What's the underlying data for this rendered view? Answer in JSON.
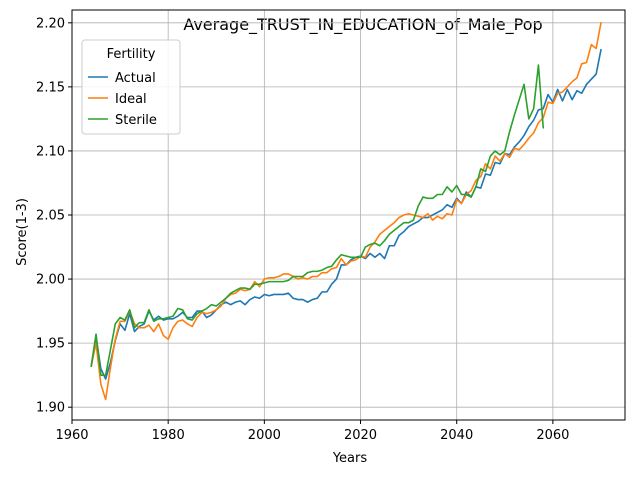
{
  "chart_data": {
    "type": "line",
    "title": "Average_TRUST_IN_EDUCATION_of_Male_Pop",
    "xlabel": "Years",
    "ylabel": "Score(1-3)",
    "xlim": [
      1960,
      2075
    ],
    "ylim": [
      1.89,
      2.21
    ],
    "xticks": [
      1960,
      1980,
      2000,
      2020,
      2040,
      2060
    ],
    "yticks": [
      1.9,
      1.95,
      2.0,
      2.05,
      2.1,
      2.15,
      2.2
    ],
    "xtick_labels": [
      "1960",
      "1980",
      "2000",
      "2020",
      "2040",
      "2060"
    ],
    "ytick_labels": [
      "1.90",
      "1.95",
      "2.00",
      "2.05",
      "2.10",
      "2.15",
      "2.20"
    ],
    "grid": true,
    "legend": {
      "title": "Fertility",
      "position": "top-left"
    },
    "series": [
      {
        "name": "Actual",
        "color": "#1f77b4",
        "x": [
          1964,
          1965,
          1966,
          1967,
          1968,
          1969,
          1970,
          1971,
          1972,
          1973,
          1974,
          1975,
          1976,
          1977,
          1978,
          1979,
          1980,
          1981,
          1982,
          1983,
          1984,
          1985,
          1986,
          1987,
          1988,
          1989,
          1990,
          1991,
          1992,
          1993,
          1994,
          1995,
          1996,
          1997,
          1998,
          1999,
          2000,
          2001,
          2002,
          2003,
          2004,
          2005,
          2006,
          2007,
          2008,
          2009,
          2010,
          2011,
          2012,
          2013,
          2014,
          2015,
          2016,
          2017,
          2018,
          2019,
          2020,
          2021,
          2022,
          2023,
          2024,
          2025,
          2026,
          2027,
          2028,
          2029,
          2030,
          2031,
          2032,
          2033,
          2034,
          2035,
          2036,
          2037,
          2038,
          2039,
          2040,
          2041,
          2042,
          2043,
          2044,
          2045,
          2046,
          2047,
          2048,
          2049,
          2050,
          2051,
          2052,
          2053,
          2054,
          2055,
          2056,
          2057,
          2058,
          2059,
          2060,
          2061,
          2062,
          2063,
          2064,
          2065,
          2066,
          2067,
          2068,
          2069,
          2070
        ],
        "values": [
          1.932,
          1.955,
          1.93,
          1.922,
          1.935,
          1.952,
          1.965,
          1.96,
          1.973,
          1.959,
          1.963,
          1.965,
          1.975,
          1.968,
          1.971,
          1.968,
          1.969,
          1.969,
          1.971,
          1.974,
          1.97,
          1.97,
          1.975,
          1.975,
          1.97,
          1.972,
          1.976,
          1.98,
          1.982,
          1.98,
          1.982,
          1.983,
          1.98,
          1.984,
          1.986,
          1.985,
          1.988,
          1.987,
          1.988,
          1.988,
          1.988,
          1.989,
          1.985,
          1.984,
          1.984,
          1.982,
          1.984,
          1.985,
          1.99,
          1.99,
          1.996,
          2.0,
          2.011,
          2.011,
          2.015,
          2.017,
          2.018,
          2.016,
          2.02,
          2.017,
          2.02,
          2.016,
          2.026,
          2.026,
          2.034,
          2.037,
          2.041,
          2.043,
          2.045,
          2.048,
          2.048,
          2.05,
          2.052,
          2.054,
          2.058,
          2.056,
          2.063,
          2.059,
          2.068,
          2.064,
          2.072,
          2.071,
          2.082,
          2.081,
          2.091,
          2.09,
          2.098,
          2.097,
          2.103,
          2.107,
          2.112,
          2.119,
          2.124,
          2.132,
          2.133,
          2.144,
          2.138,
          2.148,
          2.139,
          2.148,
          2.14,
          2.147,
          2.145,
          2.152,
          2.156,
          2.16,
          2.179
        ]
      },
      {
        "name": "Ideal",
        "color": "#ff7f0e",
        "x": [
          1964,
          1965,
          1966,
          1967,
          1968,
          1969,
          1970,
          1971,
          1972,
          1973,
          1974,
          1975,
          1976,
          1977,
          1978,
          1979,
          1980,
          1981,
          1982,
          1983,
          1984,
          1985,
          1986,
          1987,
          1988,
          1989,
          1990,
          1991,
          1992,
          1993,
          1994,
          1995,
          1996,
          1997,
          1998,
          1999,
          2000,
          2001,
          2002,
          2003,
          2004,
          2005,
          2006,
          2007,
          2008,
          2009,
          2010,
          2011,
          2012,
          2013,
          2014,
          2015,
          2016,
          2017,
          2018,
          2019,
          2020,
          2021,
          2022,
          2023,
          2024,
          2025,
          2026,
          2027,
          2028,
          2029,
          2030,
          2031,
          2032,
          2033,
          2034,
          2035,
          2036,
          2037,
          2038,
          2039,
          2040,
          2041,
          2042,
          2043,
          2044,
          2045,
          2046,
          2047,
          2048,
          2049,
          2050,
          2051,
          2052,
          2053,
          2054,
          2055,
          2056,
          2057,
          2058,
          2059,
          2060,
          2061,
          2062,
          2063,
          2064,
          2065,
          2066,
          2067,
          2068,
          2069,
          2070
        ],
        "values": [
          1.932,
          1.95,
          1.918,
          1.906,
          1.931,
          1.953,
          1.967,
          1.967,
          1.975,
          1.965,
          1.962,
          1.962,
          1.964,
          1.959,
          1.965,
          1.956,
          1.953,
          1.962,
          1.967,
          1.968,
          1.965,
          1.963,
          1.97,
          1.974,
          1.973,
          1.974,
          1.976,
          1.979,
          1.985,
          1.988,
          1.989,
          1.992,
          1.991,
          1.992,
          1.998,
          1.994,
          2.0,
          2.001,
          2.001,
          2.002,
          2.004,
          2.004,
          2.002,
          2.0,
          2.001,
          2.0,
          2.002,
          2.002,
          2.005,
          2.005,
          2.008,
          2.009,
          2.016,
          2.011,
          2.014,
          2.015,
          2.018,
          2.017,
          2.025,
          2.029,
          2.035,
          2.038,
          2.041,
          2.044,
          2.048,
          2.05,
          2.051,
          2.05,
          2.049,
          2.048,
          2.051,
          2.046,
          2.049,
          2.047,
          2.051,
          2.05,
          2.062,
          2.059,
          2.066,
          2.069,
          2.077,
          2.08,
          2.09,
          2.086,
          2.096,
          2.092,
          2.098,
          2.095,
          2.102,
          2.101,
          2.105,
          2.11,
          2.114,
          2.122,
          2.126,
          2.138,
          2.137,
          2.145,
          2.146,
          2.15,
          2.154,
          2.157,
          2.168,
          2.169,
          2.183,
          2.18,
          2.2
        ]
      },
      {
        "name": "Sterile",
        "color": "#2ca02c",
        "x": [
          1964,
          1965,
          1966,
          1967,
          1968,
          1969,
          1970,
          1971,
          1972,
          1973,
          1974,
          1975,
          1976,
          1977,
          1978,
          1979,
          1980,
          1981,
          1982,
          1983,
          1984,
          1985,
          1986,
          1987,
          1988,
          1989,
          1990,
          1991,
          1992,
          1993,
          1994,
          1995,
          1996,
          1997,
          1998,
          1999,
          2000,
          2001,
          2002,
          2003,
          2004,
          2005,
          2006,
          2007,
          2008,
          2009,
          2010,
          2011,
          2012,
          2013,
          2014,
          2015,
          2016,
          2017,
          2018,
          2019,
          2020,
          2021,
          2022,
          2023,
          2024,
          2025,
          2026,
          2027,
          2028,
          2029,
          2030,
          2031,
          2032,
          2033,
          2034,
          2035,
          2036,
          2037,
          2038,
          2039,
          2040,
          2041,
          2042,
          2043,
          2044,
          2045,
          2046,
          2047,
          2048,
          2049,
          2050,
          2051,
          2052,
          2053,
          2054,
          2055,
          2056,
          2057,
          2058
        ],
        "values": [
          1.932,
          1.957,
          1.925,
          1.925,
          1.945,
          1.965,
          1.97,
          1.968,
          1.976,
          1.962,
          1.966,
          1.966,
          1.976,
          1.967,
          1.969,
          1.969,
          1.97,
          1.971,
          1.977,
          1.976,
          1.969,
          1.968,
          1.973,
          1.975,
          1.977,
          1.98,
          1.979,
          1.982,
          1.985,
          1.989,
          1.991,
          1.993,
          1.993,
          1.992,
          1.996,
          1.996,
          1.997,
          1.998,
          1.998,
          1.998,
          1.998,
          1.999,
          2.002,
          2.002,
          2.002,
          2.005,
          2.006,
          2.006,
          2.007,
          2.009,
          2.01,
          2.015,
          2.019,
          2.018,
          2.017,
          2.017,
          2.017,
          2.025,
          2.027,
          2.028,
          2.026,
          2.03,
          2.035,
          2.038,
          2.041,
          2.044,
          2.044,
          2.046,
          2.057,
          2.064,
          2.063,
          2.063,
          2.066,
          2.066,
          2.072,
          2.068,
          2.073,
          2.066,
          2.066,
          2.064,
          2.072,
          2.086,
          2.084,
          2.096,
          2.1,
          2.097,
          2.1,
          2.115,
          2.128,
          2.14,
          2.152,
          2.125,
          2.133,
          2.167,
          2.118
        ]
      }
    ]
  }
}
